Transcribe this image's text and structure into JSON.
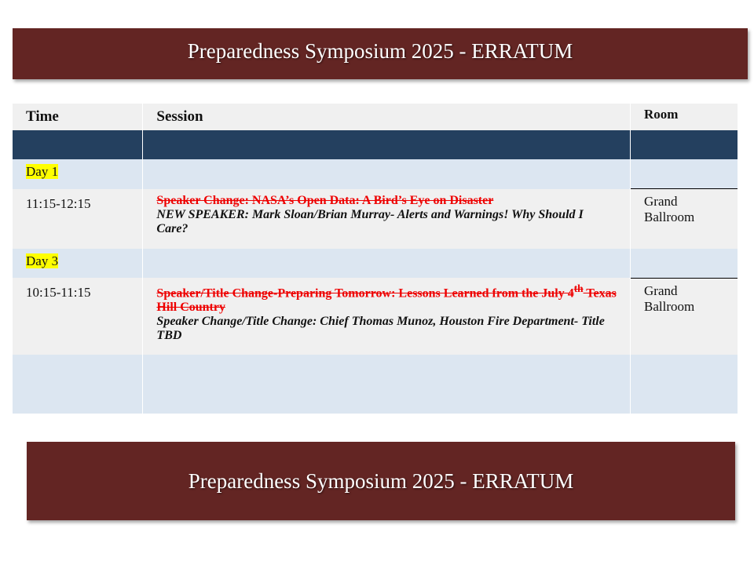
{
  "title": "Preparedness Symposium 2025 - ERRATUM",
  "footer_title": "Preparedness Symposium 2025 - ERRATUM",
  "headers": {
    "time": "Time",
    "session": "Session",
    "room": "Room"
  },
  "days": [
    {
      "label": "Day 1",
      "time": "11:15-12:15",
      "struck": "Speaker Change: NASA’s Open Data: A Bird’s Eye on Disaster",
      "struck_sup": "",
      "struck_tail": "",
      "new": "NEW SPEAKER: Mark Sloan/Brian Murray- Alerts and Warnings! Why Should I Care?",
      "room": "Grand Ballroom"
    },
    {
      "label": "Day 3",
      "time": "10:15-11:15",
      "struck": "Speaker/Title Change-Preparing Tomorrow: Lessons Learned from the July 4",
      "struck_sup": "th",
      "struck_tail": " Texas Hill Country",
      "new": "Speaker Change/Title Change: Chief Thomas Munoz, Houston Fire Department- Title TBD",
      "room": "Grand Ballroom"
    }
  ],
  "colors": {
    "banner": "#632523",
    "band": "#24405f",
    "day_row": "#dce6f1",
    "strike": "#ee0000",
    "highlight": "#ffff00"
  }
}
